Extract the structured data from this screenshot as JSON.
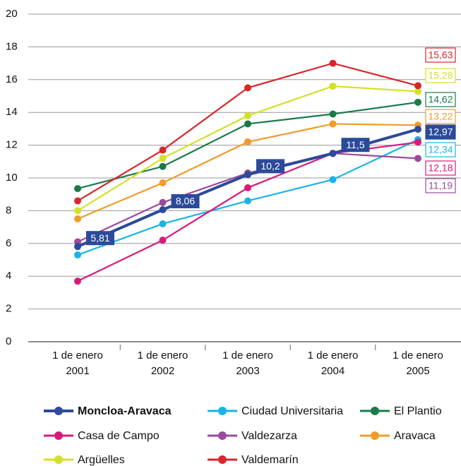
{
  "chart_data": {
    "type": "line",
    "categories": [
      "1 de enero 2001",
      "1 de enero 2002",
      "1 de enero 2003",
      "1 de enero 2004",
      "1 de enero 2005"
    ],
    "ylim": [
      0,
      20
    ],
    "yticks": [
      0,
      2,
      4,
      6,
      8,
      10,
      12,
      14,
      16,
      18,
      20
    ],
    "grid": true,
    "series": [
      {
        "name": "Moncloa-Aravaca",
        "color": "#2b4a9a",
        "values": [
          5.81,
          8.06,
          10.2,
          11.5,
          12.97
        ],
        "value_labels": [
          "5,81",
          "8,06",
          "10,2",
          "11,5",
          "12,97"
        ]
      },
      {
        "name": "Ciudad Universitaria",
        "color": "#1ab3e6",
        "values": [
          5.3,
          7.2,
          8.6,
          9.9,
          12.34
        ],
        "value_labels": [
          null,
          null,
          null,
          null,
          "12,34"
        ]
      },
      {
        "name": "El Plantio",
        "color": "#1a7a4a",
        "values": [
          9.35,
          10.7,
          13.3,
          13.9,
          14.62
        ],
        "value_labels": [
          null,
          null,
          null,
          null,
          "14,62"
        ]
      },
      {
        "name": "Casa de Campo",
        "color": "#d81b7a",
        "values": [
          3.7,
          6.2,
          9.4,
          11.5,
          12.18
        ],
        "value_labels": [
          null,
          null,
          null,
          null,
          "12,18"
        ]
      },
      {
        "name": "Valdezarza",
        "color": "#9b4a9e",
        "values": [
          6.1,
          8.5,
          10.3,
          11.5,
          11.19
        ],
        "value_labels": [
          null,
          null,
          null,
          null,
          "11,19"
        ]
      },
      {
        "name": "Aravaca",
        "color": "#f39a2a",
        "values": [
          7.5,
          9.7,
          12.2,
          13.3,
          13.22
        ],
        "value_labels": [
          null,
          null,
          null,
          null,
          "13,22"
        ]
      },
      {
        "name": "Argüelles",
        "color": "#d4e02a",
        "values": [
          8.0,
          11.2,
          13.8,
          15.6,
          15.28
        ],
        "value_labels": [
          null,
          null,
          null,
          null,
          "15,28"
        ]
      },
      {
        "name": "Valdemarín",
        "color": "#d8262b",
        "values": [
          8.6,
          11.7,
          15.5,
          17.0,
          15.63
        ],
        "value_labels": [
          null,
          null,
          null,
          null,
          "15,63"
        ]
      }
    ]
  }
}
